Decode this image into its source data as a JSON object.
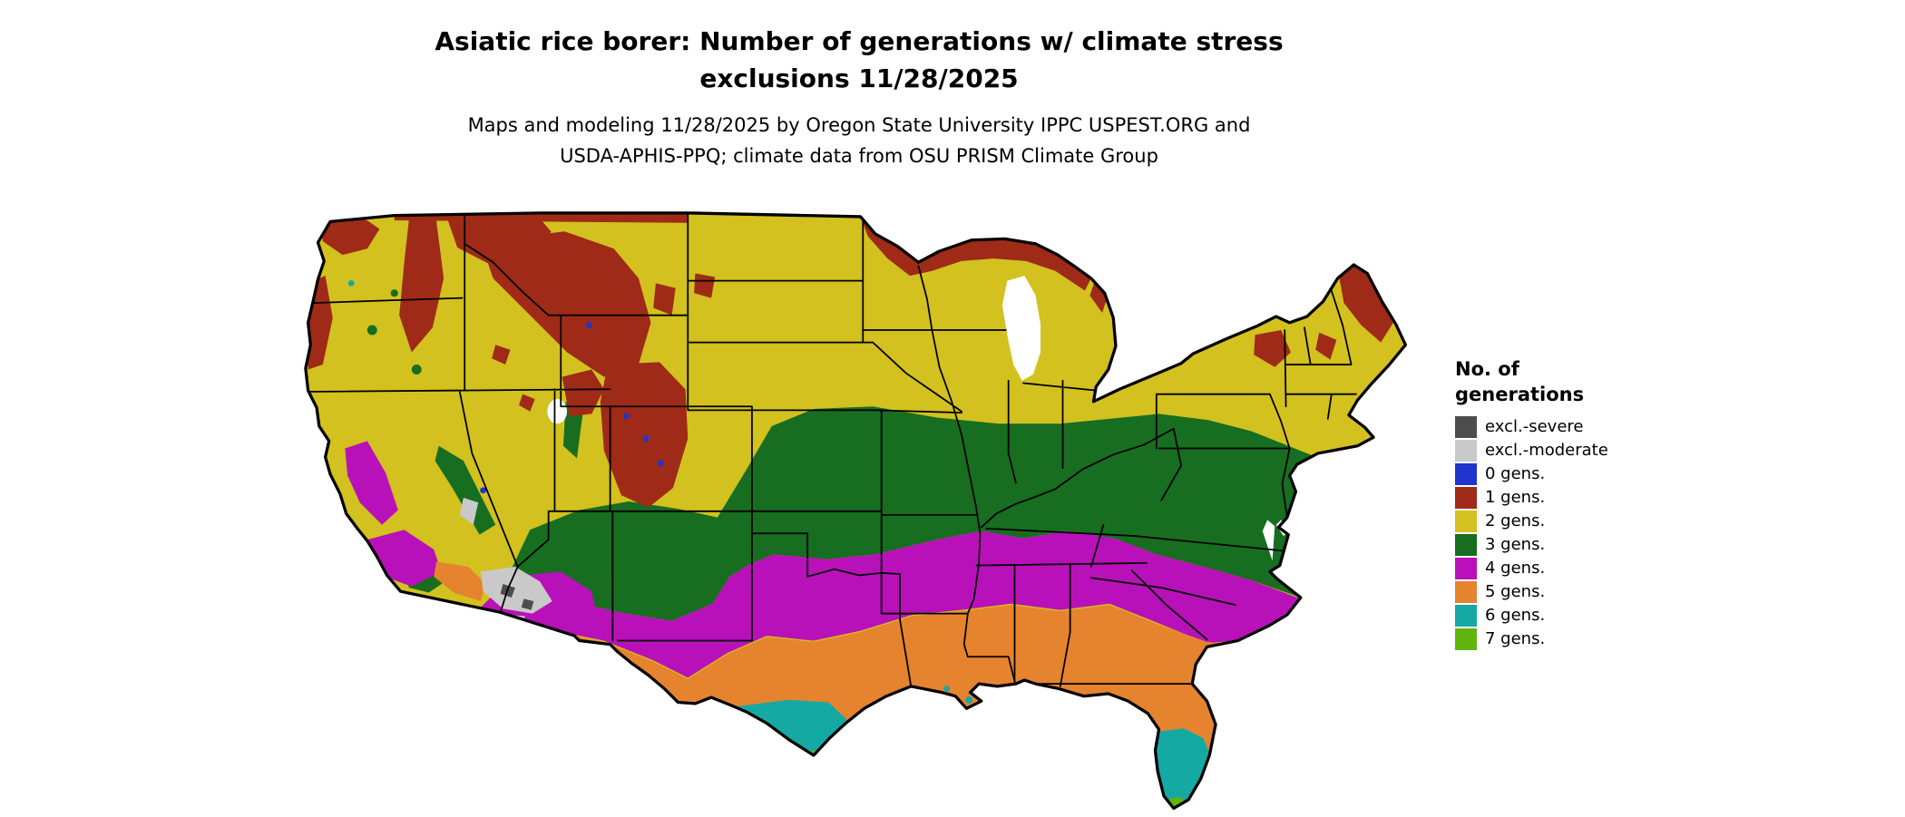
{
  "title": {
    "line1": "Asiatic rice borer: Number of generations w/ climate stress",
    "line2": "exclusions 11/28/2025"
  },
  "subtitle": {
    "line1": "Maps and modeling 11/28/2025 by Oregon State University IPPC USPEST.ORG and",
    "line2": "USDA-APHIS-PPQ; climate data from OSU PRISM Climate Group"
  },
  "legend": {
    "title_line1": "No. of",
    "title_line2": "generations",
    "items": [
      {
        "label": "excl.-severe",
        "key": "excl_severe"
      },
      {
        "label": "excl.-moderate",
        "key": "excl_moderate"
      },
      {
        "label": "0 gens.",
        "key": "g0"
      },
      {
        "label": "1 gens.",
        "key": "g1"
      },
      {
        "label": "2 gens.",
        "key": "g2"
      },
      {
        "label": "3 gens.",
        "key": "g3"
      },
      {
        "label": "4 gens.",
        "key": "g4"
      },
      {
        "label": "5 gens.",
        "key": "g5"
      },
      {
        "label": "6 gens.",
        "key": "g6"
      },
      {
        "label": "7 gens.",
        "key": "g7"
      }
    ]
  },
  "colors": {
    "excl_severe": "#4d4d4d",
    "excl_moderate": "#c9c9c9",
    "g0": "#1f35cd",
    "g1": "#9f2a18",
    "g2": "#d2c11f",
    "g3": "#176d20",
    "g4": "#b911b9",
    "g5": "#e6832e",
    "g6": "#15a9a4",
    "g7": "#63b30e",
    "map_outline": "#000000",
    "background": "#ffffff"
  }
}
